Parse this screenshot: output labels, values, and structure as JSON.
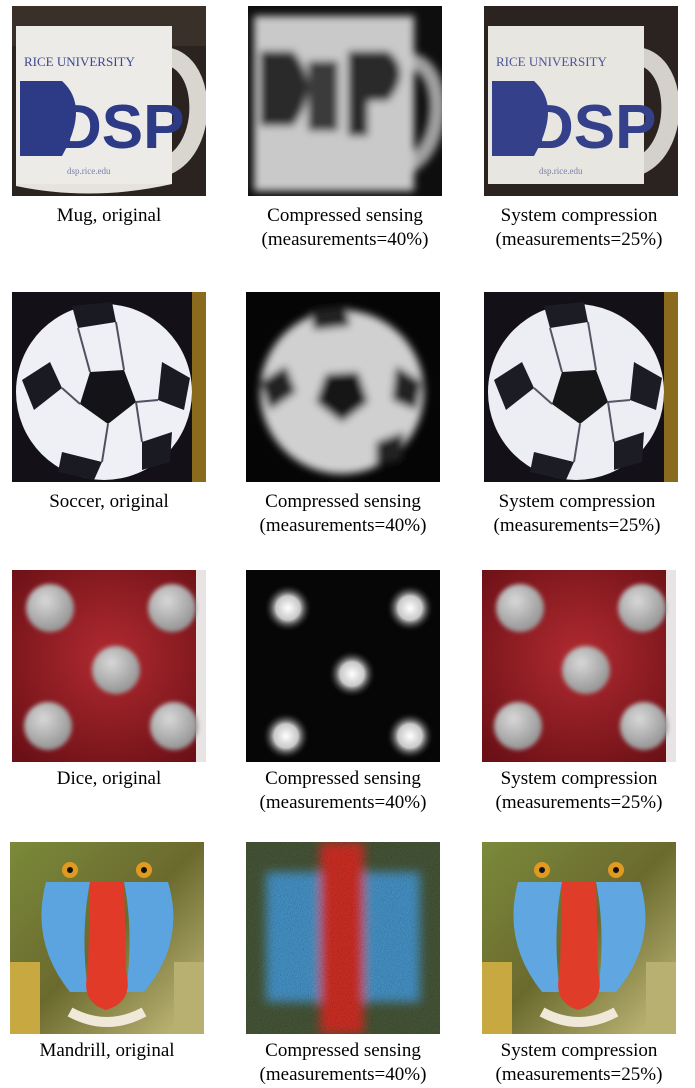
{
  "rows": [
    {
      "subject": "mug",
      "captions": [
        {
          "line1": "Mug, original",
          "line2": ""
        },
        {
          "line1": "Compressed sensing",
          "line2": "(measurements=40%)"
        },
        {
          "line1": "System compression",
          "line2": "(measurements=25%)"
        }
      ],
      "mug_text": {
        "top": "RICE UNIVERSITY",
        "logo": "DSP",
        "url": "dsp.rice.edu"
      }
    },
    {
      "subject": "soccer",
      "captions": [
        {
          "line1": "Soccer, original",
          "line2": ""
        },
        {
          "line1": "Compressed sensing",
          "line2": "(measurements=40%)"
        },
        {
          "line1": "System compression",
          "line2": "(measurements=25%)"
        }
      ]
    },
    {
      "subject": "dice",
      "captions": [
        {
          "line1": "Dice, original",
          "line2": ""
        },
        {
          "line1": "Compressed sensing",
          "line2": "(measurements=40%)"
        },
        {
          "line1": "System compression",
          "line2": "(measurements=25%)"
        }
      ]
    },
    {
      "subject": "mandrill",
      "captions": [
        {
          "line1": "Mandrill, original",
          "line2": ""
        },
        {
          "line1": "Compressed sensing",
          "line2": "(measurements=40%)"
        },
        {
          "line1": "System compression",
          "line2": "(measurements=25%)"
        }
      ]
    }
  ],
  "colors": {
    "mug_blue": "#2d3a86",
    "dice_red": "#8a1820",
    "mandrill_red": "#e03a2a",
    "mandrill_blue": "#5fa8e0",
    "fur_green": "#6f7a35"
  }
}
